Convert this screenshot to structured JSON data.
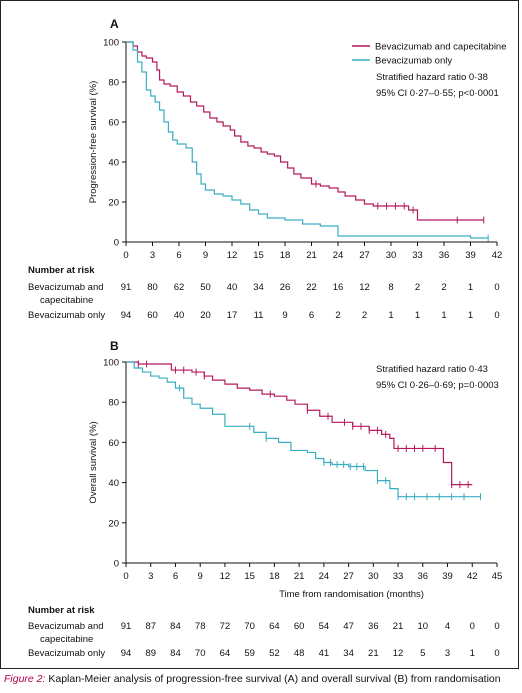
{
  "figure": {
    "caption_lead": "Figure 2:",
    "caption_text": " Kaplan-Meier analysis of progression-free survival (A) and overall survival (B) from randomisation"
  },
  "chart_data": [
    {
      "panel": "A",
      "type": "line",
      "subtype": "kaplan-meier",
      "ylabel": "Progression-free survival (%)",
      "xlabel": "",
      "xlim": [
        0,
        42
      ],
      "ylim": [
        0,
        100
      ],
      "xticks": [
        0,
        3,
        6,
        9,
        12,
        15,
        18,
        21,
        24,
        27,
        30,
        33,
        36,
        39,
        42
      ],
      "yticks": [
        0,
        20,
        40,
        60,
        80,
        100
      ],
      "grid": false,
      "legend": "top-right",
      "annotations": [
        "Stratified hazard ratio 0·38",
        "95% CI 0·27–0·55; p<0·0001"
      ],
      "series": [
        {
          "name": "Bevacizumab and capecitabine",
          "color": "#b5195c",
          "x": [
            0,
            0.8,
            1.3,
            1.8,
            2.3,
            3.0,
            3.5,
            3.8,
            4.3,
            5.0,
            5.8,
            6.5,
            7.3,
            8.0,
            8.8,
            9.5,
            10.3,
            11.0,
            11.8,
            12.3,
            13.0,
            13.8,
            14.5,
            15.3,
            16.0,
            16.8,
            17.5,
            18.3,
            19.0,
            19.8,
            21.0,
            22.0,
            23.0,
            24.0,
            24.8,
            26.0,
            27.0,
            28.0,
            29.0,
            30.0,
            31.0,
            32.0,
            33.0,
            35.0,
            37.0,
            39.0,
            40.5
          ],
          "y": [
            100,
            98,
            95,
            93,
            92,
            90,
            86,
            81,
            79,
            78,
            75,
            73,
            70,
            68,
            65,
            62,
            60,
            58,
            56,
            53,
            50,
            48,
            47,
            45,
            44,
            43,
            40,
            37,
            34,
            32,
            29,
            28,
            27,
            25,
            23,
            21,
            19,
            18,
            18,
            18,
            18,
            16,
            11,
            11,
            11,
            11,
            11
          ],
          "censored_x": [
            21.5,
            28.5,
            29.5,
            30.5,
            31.5,
            32.5,
            37.5,
            40.5
          ]
        },
        {
          "name": "Bevacizumab only",
          "color": "#3aaec2",
          "x": [
            0,
            0.8,
            1.3,
            1.8,
            2.3,
            2.8,
            3.3,
            3.8,
            4.3,
            4.8,
            5.3,
            5.8,
            6.8,
            7.5,
            8.0,
            8.5,
            9.0,
            10.0,
            11.0,
            12.0,
            13.0,
            14.0,
            15.0,
            16.0,
            18.0,
            20.0,
            22.0,
            24.0,
            27.0,
            30.0,
            33.0,
            36.0,
            39.0,
            41.0
          ],
          "y": [
            100,
            96,
            90,
            85,
            76,
            73,
            70,
            66,
            60,
            55,
            51,
            49,
            47,
            40,
            34,
            29,
            26,
            24,
            23,
            21,
            19,
            16,
            14,
            12,
            11,
            9,
            8,
            3,
            3,
            3,
            3,
            3,
            2,
            2
          ],
          "censored_x": [
            41
          ]
        }
      ],
      "at_risk": {
        "title": "Number at risk",
        "rows": [
          {
            "label": [
              "Bevacizumab and",
              "capecitabine"
            ],
            "values": [
              "91",
              "80",
              "62",
              "50",
              "40",
              "34",
              "26",
              "22",
              "16",
              "12",
              "8",
              "2",
              "2",
              "1",
              "0"
            ]
          },
          {
            "label": [
              "Bevacizumab only"
            ],
            "values": [
              "94",
              "60",
              "40",
              "20",
              "17",
              "11",
              "9",
              "6",
              "2",
              "2",
              "1",
              "1",
              "1",
              "1",
              "0"
            ]
          }
        ]
      }
    },
    {
      "panel": "B",
      "type": "line",
      "subtype": "kaplan-meier",
      "ylabel": "Overall survival (%)",
      "xlabel": "Time from randomisation (months)",
      "xlim": [
        0,
        45
      ],
      "ylim": [
        0,
        100
      ],
      "xticks": [
        0,
        3,
        6,
        9,
        12,
        15,
        18,
        21,
        24,
        27,
        30,
        33,
        36,
        39,
        42,
        45
      ],
      "yticks": [
        0,
        20,
        40,
        60,
        80,
        100
      ],
      "grid": false,
      "legend": "none",
      "annotations": [
        "Stratified hazard ratio 0·43",
        "95% CI 0·26–0·69; p=0·0003"
      ],
      "series": [
        {
          "name": "Bevacizumab and capecitabine",
          "color": "#b5195c",
          "x": [
            0,
            1.5,
            2.5,
            5.5,
            8.0,
            9.5,
            10.5,
            12.0,
            13.5,
            15.0,
            16.5,
            18.0,
            19.5,
            20.5,
            22.0,
            23.5,
            25.0,
            27.5,
            29.5,
            31.0,
            32.0,
            32.5,
            36.0,
            38.5,
            39.5,
            42.0
          ],
          "y": [
            100,
            99,
            99,
            96,
            95,
            93,
            91,
            89,
            87,
            86,
            84,
            83,
            81,
            79,
            76,
            73,
            70,
            68,
            66,
            64,
            62,
            57,
            57,
            50,
            39,
            39
          ],
          "censored_x": [
            1.5,
            2.5,
            6.0,
            7.0,
            8.5,
            9.5,
            17.5,
            22.0,
            24.5,
            26.5,
            27.5,
            28.5,
            29.5,
            30.5,
            31.5,
            33.0,
            34.0,
            35.0,
            36.0,
            37.5,
            39.5,
            40.5,
            41.5
          ]
        },
        {
          "name": "Bevacizumab only",
          "color": "#3aaec2",
          "x": [
            0,
            1.0,
            2.0,
            3.0,
            4.0,
            5.0,
            6.0,
            7.0,
            8.0,
            9.0,
            10.5,
            12.0,
            13.5,
            15.5,
            17.0,
            18.5,
            20.0,
            22.0,
            23.0,
            24.0,
            25.0,
            27.0,
            29.0,
            30.5,
            32.0,
            33.0,
            43.0
          ],
          "y": [
            100,
            97,
            95,
            93,
            92,
            90,
            87,
            82,
            79,
            77,
            74,
            68,
            68,
            65,
            62,
            60,
            56,
            55,
            52,
            50,
            49,
            48,
            46,
            41,
            37,
            33,
            33
          ],
          "censored_x": [
            6.5,
            15.0,
            17.0,
            24.0,
            24.8,
            25.6,
            26.4,
            27.2,
            28.0,
            28.8,
            30.5,
            31.5,
            33.0,
            34.0,
            35.0,
            36.5,
            38.0,
            39.5,
            41.0,
            43.0
          ]
        }
      ],
      "at_risk": {
        "title": "Number at risk",
        "rows": [
          {
            "label": [
              "Bevacizumab and",
              "capecitabine"
            ],
            "values": [
              "91",
              "87",
              "84",
              "78",
              "72",
              "70",
              "64",
              "60",
              "54",
              "47",
              "36",
              "21",
              "10",
              "4",
              "0",
              "0"
            ]
          },
          {
            "label": [
              "Bevacizumab only"
            ],
            "values": [
              "94",
              "89",
              "84",
              "70",
              "64",
              "59",
              "52",
              "48",
              "41",
              "34",
              "21",
              "12",
              "5",
              "3",
              "1",
              "0"
            ]
          }
        ]
      }
    }
  ]
}
